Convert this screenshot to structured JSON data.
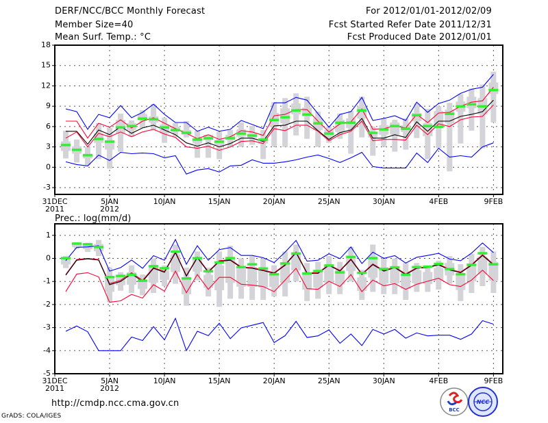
{
  "header": {
    "title": "DERF/NCC/BCC Monthly Forecast",
    "member_size": "Member Size=40",
    "variable": "Mean Surf. Temp.: °C",
    "period": "For 2012/01/01-2012/02/09",
    "started": "Fcst Started Refer Date 2011/12/31",
    "produced": "Fcst Produced Date 2012/01/01"
  },
  "footer": {
    "url": "http://cmdp.ncc.cma.gov.cn",
    "credit": "GrADS: COLA/IGES",
    "logos": [
      "BCC",
      "NCC"
    ]
  },
  "colors": {
    "blue": "#0000ff",
    "red": "#ff0033",
    "black": "#000000",
    "green": "#33ee33",
    "gray": "#d3d3d8",
    "grid": "#555555"
  },
  "chart_data": [
    {
      "type": "line",
      "title": "Mean Surf. Temp.: °C",
      "x": "day offset from 31DEC2011 (1..40)",
      "xlim": [
        0,
        40.85
      ],
      "ylim": [
        -4,
        18
      ],
      "yticks": [
        -3,
        0,
        3,
        6,
        9,
        12,
        15,
        18
      ],
      "xticks": [
        {
          "day": 0,
          "label": "31DEC",
          "sub": "2011"
        },
        {
          "day": 5,
          "label": "5JAN",
          "sub": "2012"
        },
        {
          "day": 10,
          "label": "10JAN"
        },
        {
          "day": 15,
          "label": "15JAN"
        },
        {
          "day": 20,
          "label": "20JAN"
        },
        {
          "day": 25,
          "label": "25JAN"
        },
        {
          "day": 30,
          "label": "30JAN"
        },
        {
          "day": 35,
          "label": "4FEB"
        },
        {
          "day": 40,
          "label": "9FEB"
        }
      ],
      "grid": true,
      "series": [
        {
          "name": "upper-blue",
          "color": "blue",
          "values": [
            8.6,
            8.2,
            5.6,
            7.8,
            7.3,
            9.1,
            7.3,
            8.1,
            9.3,
            7.8,
            6.6,
            6.6,
            5.3,
            5.9,
            5.3,
            5.6,
            6.9,
            6.3,
            5.7,
            9.5,
            9.5,
            10.3,
            9.9,
            7.9,
            5.9,
            7.8,
            8.2,
            10.3,
            6.9,
            7.2,
            7.6,
            6.9,
            9.6,
            8.1,
            9.4,
            9.9,
            10.9,
            11.5,
            11.8,
            13.7
          ]
        },
        {
          "name": "upper-red",
          "color": "red",
          "values": [
            6.8,
            6.8,
            4.3,
            6.5,
            5.9,
            7.0,
            5.8,
            6.8,
            7.3,
            6.5,
            5.7,
            5.0,
            4.2,
            4.8,
            4.1,
            4.5,
            5.4,
            5.2,
            4.7,
            7.6,
            7.8,
            8.5,
            8.5,
            6.8,
            5.2,
            6.4,
            6.7,
            8.6,
            5.6,
            5.7,
            6.1,
            5.8,
            7.8,
            6.6,
            8.0,
            8.1,
            9.0,
            9.6,
            9.8,
            11.8
          ]
        },
        {
          "name": "ensemble-mean",
          "color": "black",
          "values": [
            5.3,
            5.3,
            3.4,
            5.5,
            4.8,
            6.0,
            5.0,
            5.8,
            6.2,
            5.5,
            4.8,
            3.6,
            3.1,
            3.6,
            3.0,
            3.5,
            4.3,
            4.3,
            3.8,
            6.1,
            6.2,
            6.8,
            6.8,
            5.4,
            4.1,
            5.1,
            5.5,
            7.2,
            4.3,
            4.3,
            4.8,
            4.4,
            6.7,
            5.3,
            6.8,
            6.8,
            7.5,
            7.8,
            8.2,
            9.9
          ]
        },
        {
          "name": "lower-red",
          "color": "red",
          "values": [
            4.3,
            5.2,
            3.0,
            5.0,
            4.5,
            5.2,
            4.5,
            5.2,
            5.6,
            4.9,
            4.4,
            3.0,
            2.8,
            3.1,
            2.5,
            3.0,
            3.8,
            3.9,
            3.5,
            5.7,
            5.4,
            6.2,
            6.2,
            5.3,
            3.9,
            4.8,
            5.3,
            6.8,
            3.9,
            4.1,
            4.1,
            4.0,
            6.2,
            4.8,
            6.4,
            6.0,
            7.0,
            7.4,
            7.5,
            9.2
          ]
        },
        {
          "name": "lower-blue",
          "color": "blue",
          "values": [
            0.8,
            0.4,
            0.2,
            1.8,
            1.0,
            2.2,
            2.0,
            2.1,
            2.0,
            1.4,
            1.7,
            -1.0,
            -0.4,
            -0.2,
            -0.7,
            0.2,
            0.3,
            1.1,
            0.6,
            0.6,
            0.8,
            1.1,
            1.5,
            1.8,
            1.3,
            0.7,
            1.4,
            2.2,
            0.1,
            -0.1,
            -0.1,
            -0.1,
            2.1,
            0.7,
            2.8,
            1.5,
            1.7,
            1.5,
            3.0,
            3.6
          ]
        }
      ],
      "markers": {
        "name": "green-mark",
        "values": [
          3.3,
          2.6,
          1.8,
          4.2,
          3.8,
          5.9,
          6.1,
          7.2,
          7.1,
          5.9,
          5.5,
          5.1,
          4.1,
          4.3,
          3.8,
          4.3,
          5.0,
          4.7,
          4.1,
          7.0,
          7.4,
          8.4,
          7.8,
          6.5,
          5.0,
          6.6,
          6.6,
          8.4,
          5.1,
          5.6,
          6.1,
          5.7,
          7.7,
          6.1,
          6.0,
          7.9,
          9.0,
          9.3,
          9.0,
          11.4
        ]
      },
      "boxes": {
        "whisker_low": [
          1.3,
          0.7,
          0.3,
          1.2,
          -0.2,
          2.3,
          4.5,
          5.8,
          5.4,
          3.6,
          4.5,
          4.4,
          1.4,
          1.4,
          1.2,
          3.0,
          3.0,
          3.3,
          1.2,
          3.1,
          3.0,
          4.7,
          4.2,
          3.0,
          3.6,
          4.2,
          2.0,
          4.4,
          1.7,
          3.1,
          2.3,
          2.6,
          4.3,
          1.2,
          2.8,
          -0.6,
          3.5,
          5.4,
          2.8,
          6.6
        ],
        "whisker_high": [
          5.4,
          4.1,
          3.0,
          6.5,
          5.8,
          7.9,
          6.9,
          8.4,
          9.3,
          7.3,
          6.5,
          6.8,
          5.4,
          4.8,
          5.2,
          5.5,
          6.6,
          6.1,
          5.5,
          9.6,
          10.2,
          10.9,
          10.4,
          8.2,
          6.0,
          7.9,
          8.3,
          10.4,
          6.0,
          7.2,
          7.0,
          7.2,
          9.4,
          8.6,
          9.0,
          9.5,
          10.8,
          11.6,
          12.2,
          14.1
        ],
        "box_low": [
          2.4,
          2.0,
          1.3,
          3.6,
          2.6,
          5.0,
          5.5,
          6.9,
          6.6,
          5.0,
          5.3,
          4.8,
          3.5,
          4.0,
          3.2,
          4.0,
          4.5,
          4.3,
          3.5,
          6.0,
          6.5,
          7.8,
          7.5,
          5.5,
          4.5,
          5.2,
          5.8,
          7.2,
          4.4,
          4.8,
          4.8,
          5.2,
          6.8,
          4.6,
          6.0,
          6.5,
          8.2,
          8.7,
          7.8,
          10.8
        ],
        "box_high": [
          3.8,
          3.1,
          2.0,
          5.0,
          4.0,
          7.0,
          6.5,
          7.8,
          7.5,
          6.3,
          6.0,
          5.5,
          4.3,
          4.8,
          4.0,
          4.8,
          5.6,
          5.0,
          4.3,
          8.0,
          8.7,
          9.4,
          8.8,
          7.2,
          5.5,
          7.0,
          7.2,
          9.0,
          5.2,
          6.2,
          6.6,
          6.2,
          8.0,
          6.5,
          8.3,
          8.5,
          9.7,
          10.4,
          10.2,
          12.5
        ]
      }
    },
    {
      "type": "line",
      "title": "Prec.: log(mm/d)",
      "xlim": [
        0,
        40.85
      ],
      "ylim": [
        -5,
        1.5
      ],
      "yticks": [
        -5,
        -4,
        -3,
        -2,
        -1,
        0,
        1
      ],
      "xticks": [
        {
          "day": 0,
          "label": "31DEC",
          "sub": "2011"
        },
        {
          "day": 5,
          "label": "5JAN",
          "sub": "2012"
        },
        {
          "day": 10,
          "label": "10JAN"
        },
        {
          "day": 15,
          "label": "15JAN"
        },
        {
          "day": 20,
          "label": "20JAN"
        },
        {
          "day": 25,
          "label": "25JAN"
        },
        {
          "day": 30,
          "label": "30JAN"
        },
        {
          "day": 35,
          "label": "4FEB"
        },
        {
          "day": 40,
          "label": "9FEB"
        }
      ],
      "grid": true,
      "series": [
        {
          "name": "upper-blue",
          "color": "blue",
          "values": [
            -0.1,
            0.48,
            0.5,
            0.55,
            -0.55,
            -0.4,
            -0.07,
            -0.43,
            0.12,
            -0.08,
            0.82,
            -0.25,
            0.55,
            -0.08,
            0.38,
            0.47,
            0.13,
            0.13,
            0.03,
            -0.18,
            0.27,
            0.78,
            -0.12,
            -0.08,
            0.2,
            -0.01,
            0.5,
            -0.22,
            0.27,
            0.0,
            0.12,
            -0.2,
            0.05,
            0.13,
            0.22,
            -0.03,
            -0.1,
            0.23,
            0.67,
            0.25
          ]
        },
        {
          "name": "upper-red",
          "color": "red",
          "values": [
            -0.7,
            -0.05,
            0.0,
            -0.05,
            -1.09,
            -0.95,
            -0.62,
            -0.95,
            -0.4,
            -0.57,
            0.28,
            -0.74,
            0.06,
            -0.57,
            -0.1,
            -0.05,
            -0.37,
            -0.4,
            -0.5,
            -0.62,
            -0.27,
            0.28,
            -0.62,
            -0.62,
            -0.27,
            -0.52,
            -0.02,
            -0.67,
            -0.24,
            -0.52,
            -0.37,
            -0.67,
            -0.4,
            -0.37,
            -0.25,
            -0.47,
            -0.59,
            -0.27,
            0.16,
            -0.25
          ]
        },
        {
          "name": "ensemble-mean",
          "color": "black",
          "values": [
            -0.73,
            -0.08,
            -0.02,
            -0.07,
            -1.14,
            -1.0,
            -0.67,
            -1.0,
            -0.43,
            -0.6,
            0.25,
            -0.77,
            0.03,
            -0.6,
            -0.13,
            -0.08,
            -0.4,
            -0.43,
            -0.53,
            -0.65,
            -0.3,
            0.25,
            -0.65,
            -0.65,
            -0.3,
            -0.55,
            -0.05,
            -0.7,
            -0.27,
            -0.55,
            -0.4,
            -0.7,
            -0.43,
            -0.4,
            -0.28,
            -0.5,
            -0.62,
            -0.3,
            0.13,
            -0.28
          ]
        },
        {
          "name": "lower-red",
          "color": "red",
          "values": [
            -1.44,
            -0.68,
            -0.62,
            -0.8,
            -1.9,
            -1.84,
            -1.56,
            -1.72,
            -1.14,
            -1.42,
            -0.55,
            -1.49,
            -0.7,
            -1.34,
            -0.82,
            -0.82,
            -1.12,
            -1.16,
            -1.22,
            -1.44,
            -0.94,
            -0.43,
            -1.31,
            -1.34,
            -0.99,
            -1.22,
            -0.7,
            -1.44,
            -0.94,
            -1.19,
            -1.09,
            -1.34,
            -1.12,
            -0.99,
            -0.86,
            -1.14,
            -1.22,
            -0.94,
            -0.51,
            -0.96
          ]
        },
        {
          "name": "lower-blue",
          "color": "blue",
          "values": [
            -3.16,
            -2.93,
            -3.18,
            -4.0,
            -4.0,
            -4.0,
            -3.41,
            -3.56,
            -2.96,
            -3.53,
            -2.6,
            -4.0,
            -3.16,
            -3.35,
            -2.81,
            -3.48,
            -3.01,
            -2.9,
            -2.78,
            -3.65,
            -3.35,
            -2.73,
            -3.43,
            -3.36,
            -3.1,
            -3.68,
            -3.28,
            -3.78,
            -3.08,
            -3.28,
            -3.08,
            -3.46,
            -3.23,
            -3.36,
            -3.33,
            -3.33,
            -3.51,
            -3.28,
            -2.7,
            -2.85
          ]
        }
      ],
      "markers": {
        "name": "green-mark",
        "values": [
          0.02,
          0.65,
          0.62,
          0.5,
          -0.8,
          -0.75,
          -0.7,
          -0.96,
          -0.33,
          -0.42,
          0.3,
          -0.86,
          0.02,
          -0.55,
          -0.17,
          0.02,
          -0.37,
          -0.25,
          -0.43,
          -0.68,
          -0.21,
          0.22,
          -0.65,
          -0.54,
          -0.3,
          -0.6,
          0.07,
          -0.62,
          0.02,
          -0.45,
          -0.38,
          -0.7,
          -0.37,
          -0.35,
          -0.23,
          -0.45,
          -0.68,
          -0.27,
          0.23,
          -0.25
        ]
      },
      "boxes": {
        "whisker_low": [
          -0.42,
          0.4,
          0.28,
          0.1,
          -1.9,
          -1.4,
          -1.5,
          -1.6,
          -1.5,
          -1.2,
          -1.1,
          -2.05,
          -0.95,
          -1.65,
          -2.1,
          -1.75,
          -1.75,
          -1.8,
          -1.8,
          -1.65,
          -1.65,
          -1.0,
          -1.85,
          -1.75,
          -1.55,
          -1.55,
          -1.0,
          -1.8,
          -1.45,
          -1.55,
          -1.55,
          -1.8,
          -1.45,
          -1.45,
          -1.35,
          -1.1,
          -1.85,
          -1.5,
          -1.2,
          -1.5
        ],
        "whisker_high": [
          0.1,
          0.7,
          0.68,
          0.8,
          -0.4,
          -0.6,
          -0.3,
          -0.7,
          0.0,
          -0.3,
          0.6,
          -0.4,
          0.3,
          -0.4,
          0.3,
          0.55,
          0.0,
          0.1,
          0.0,
          -0.3,
          0.3,
          0.6,
          -0.2,
          -0.15,
          0.1,
          -0.15,
          0.5,
          -0.5,
          0.6,
          0.0,
          0.0,
          -0.2,
          -0.2,
          -0.3,
          -0.1,
          0.1,
          -0.25,
          0.2,
          0.5,
          0.3
        ]
      }
    }
  ]
}
